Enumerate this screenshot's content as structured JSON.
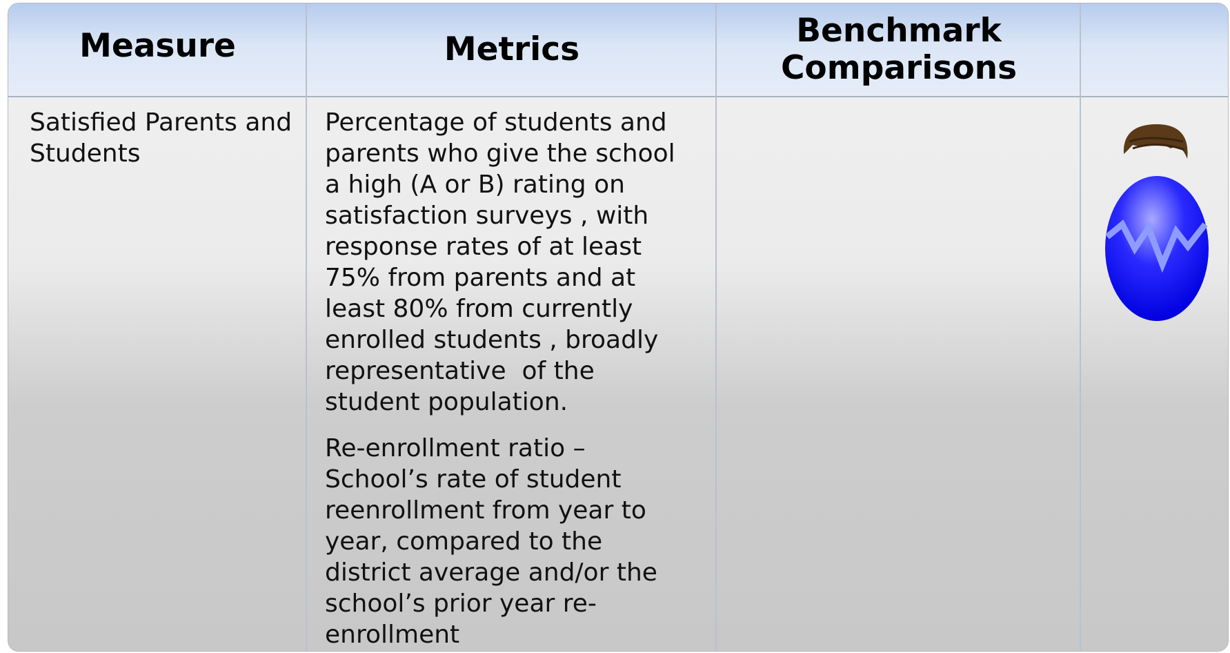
{
  "table": {
    "header": [
      "Measure",
      "Metrics",
      "Benchmark Comparisons"
    ],
    "rows": [
      {
        "measure": "Satisfied Parents and Students",
        "metrics": [
          [
            "Percentage of students and",
            "parents who give the school",
            "a high (A or B) rating on",
            "satisfaction surveys , with",
            "response rates of at least",
            "75% from parents and at",
            "least 80% from currently",
            "enrolled students , broadly",
            "representative  of the",
            "student population."
          ],
          [
            "Re-enrollment ratio –",
            "School’s rate of student",
            "reenrollment from year to",
            "year, compared to the",
            "district average and/or the",
            "school’s prior year re-",
            "enrollment"
          ]
        ]
      }
    ]
  }
}
